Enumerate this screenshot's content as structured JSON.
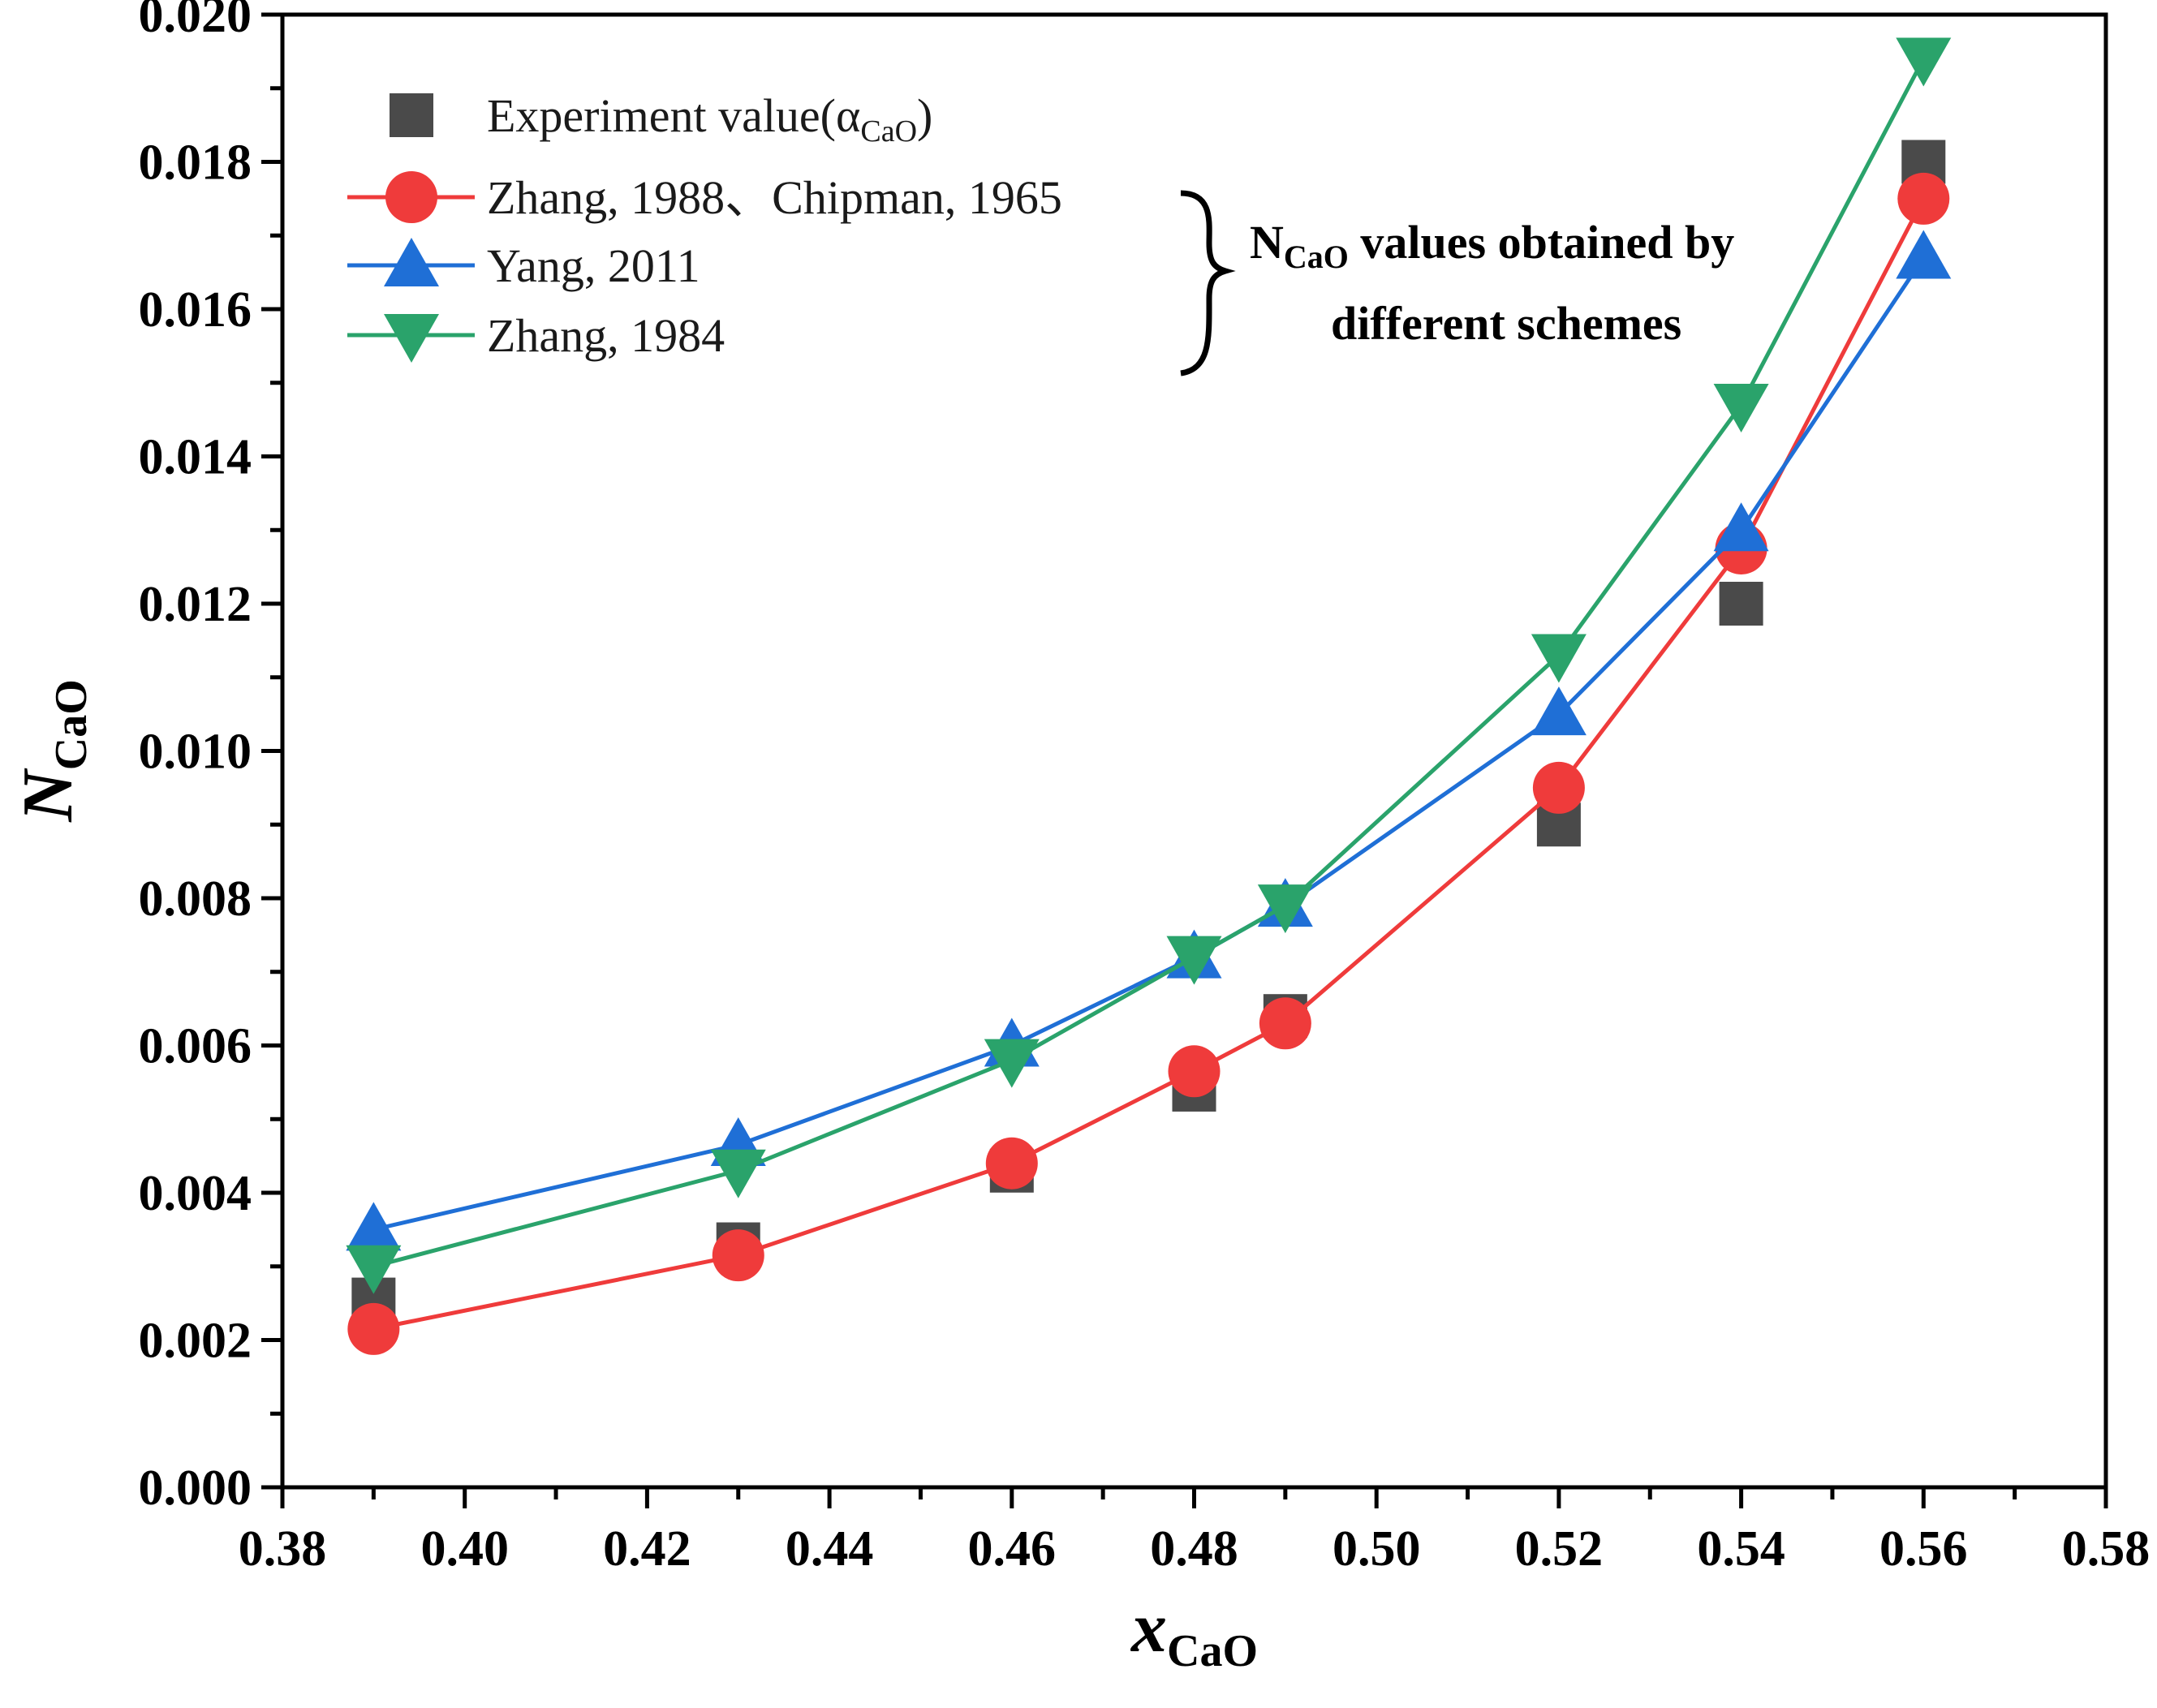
{
  "chart_data": {
    "type": "scatter",
    "title": "",
    "xlabel": {
      "main": "x",
      "sub": "CaO"
    },
    "ylabel": {
      "main": "N",
      "sub": "CaO"
    },
    "xlim": [
      0.38,
      0.58
    ],
    "ylim": [
      0.0,
      0.02
    ],
    "xticks": [
      "0.38",
      "0.40",
      "0.42",
      "0.44",
      "0.46",
      "0.48",
      "0.50",
      "0.52",
      "0.54",
      "0.56",
      "0.58"
    ],
    "yticks": [
      "0.000",
      "0.002",
      "0.004",
      "0.006",
      "0.008",
      "0.010",
      "0.012",
      "0.014",
      "0.016",
      "0.018",
      "0.020"
    ],
    "x": [
      0.39,
      0.43,
      0.46,
      0.48,
      0.49,
      0.52,
      0.54,
      0.56
    ],
    "series": [
      {
        "name": "Experiment value(αCaO)",
        "label_main": "Experiment value(α",
        "label_sub": "CaO",
        "label_end": ")",
        "marker": "square",
        "color": "#4a4a4a",
        "line": false,
        "values": [
          0.00255,
          0.0033,
          0.0043,
          0.0054,
          0.0064,
          0.009,
          0.012,
          0.018
        ]
      },
      {
        "name": "Zhang, 1988、Chipman, 1965",
        "label_main": "Zhang, 1988、Chipman, 1965",
        "label_sub": "",
        "label_end": "",
        "marker": "circle",
        "color": "#ef3b3b",
        "line": true,
        "values": [
          0.00215,
          0.00315,
          0.0044,
          0.00565,
          0.0063,
          0.0095,
          0.01275,
          0.0175
        ]
      },
      {
        "name": "Yang, 2011",
        "label_main": "Yang, 2011",
        "label_sub": "",
        "label_end": "",
        "marker": "triangle-up",
        "color": "#1f6fd6",
        "line": true,
        "values": [
          0.0035,
          0.00465,
          0.006,
          0.0072,
          0.0079,
          0.0105,
          0.013,
          0.0167
        ]
      },
      {
        "name": "Zhang, 1984",
        "label_main": "Zhang, 1984",
        "label_sub": "",
        "label_end": "",
        "marker": "triangle-down",
        "color": "#2aa36b",
        "line": true,
        "values": [
          0.003,
          0.0043,
          0.0058,
          0.0072,
          0.0079,
          0.0113,
          0.0147,
          0.0194
        ]
      }
    ],
    "annotation": {
      "main": "N",
      "sub": "CaO",
      "line1_rest": " values obtained by",
      "line2": "different schemes"
    },
    "legend_position": "top-left"
  }
}
